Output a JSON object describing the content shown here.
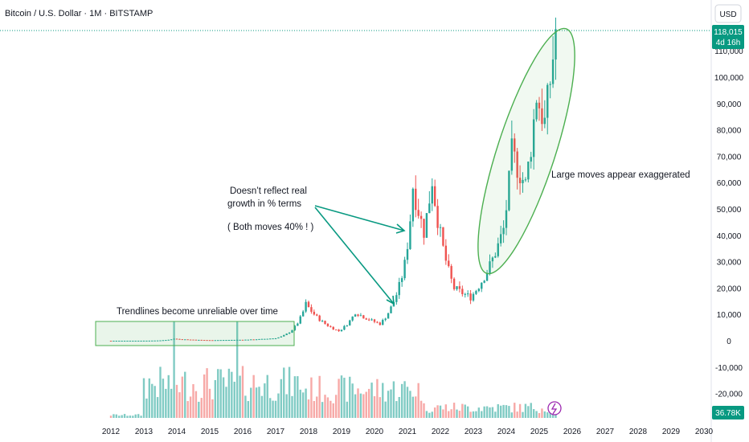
{
  "header": {
    "title": "Bitcoin / U.S. Dollar · 1M · BITSTAMP"
  },
  "currency_button": {
    "label": "USD"
  },
  "price_badge": {
    "price": "118,015",
    "countdown": "4d 16h"
  },
  "volume_badge": {
    "label": "36.78K"
  },
  "colors": {
    "up": "#26a69a",
    "down": "#ef5350",
    "up_volume": "#80cbc4",
    "down_volume": "#f7a9a7",
    "annotation": "#4caf50",
    "badge": "#089981"
  },
  "annotations": {
    "trendline_box": "Trendlines become unreliable over time",
    "growth_line1": "Doesn’t reflect real",
    "growth_line2": "growth in % terms",
    "growth_line3": "( Both moves 40% ! )",
    "exaggerated": "Large moves appear exaggerated"
  },
  "chart_data": {
    "type": "candlestick",
    "title": "Bitcoin / U.S. Dollar · 1M · BITSTAMP",
    "y_ticks": [
      110000,
      100000,
      90000,
      80000,
      70000,
      60000,
      50000,
      40000,
      30000,
      20000,
      10000,
      0,
      -10000,
      -20000
    ],
    "y_tick_labels": [
      "110,000",
      "100,000",
      "90,000",
      "80,000",
      "70,000",
      "60,000",
      "50,000",
      "40,000",
      "30,000",
      "20,000",
      "10,000",
      "0",
      "-10,000",
      "-20,000"
    ],
    "x_ticks": [
      "2012",
      "2013",
      "2014",
      "2015",
      "2016",
      "2017",
      "2018",
      "2019",
      "2020",
      "2021",
      "2022",
      "2023",
      "2024",
      "2025",
      "2026",
      "2027",
      "2028",
      "2029",
      "2030"
    ],
    "last_price": 118015,
    "series": [
      {
        "date": "2012-01",
        "close": 6
      },
      {
        "date": "2013-01",
        "close": 20
      },
      {
        "date": "2013-12",
        "close": 750
      },
      {
        "date": "2015-01",
        "close": 220
      },
      {
        "date": "2016-01",
        "close": 370
      },
      {
        "date": "2017-01",
        "close": 970
      },
      {
        "date": "2017-12",
        "close": 14000
      },
      {
        "date": "2018-12",
        "close": 3700
      },
      {
        "date": "2019-06",
        "close": 10800
      },
      {
        "date": "2020-03",
        "close": 6400
      },
      {
        "date": "2020-12",
        "close": 29000
      },
      {
        "date": "2021-03",
        "close": 58800
      },
      {
        "date": "2021-07",
        "close": 41500
      },
      {
        "date": "2021-10",
        "close": 61300
      },
      {
        "date": "2022-06",
        "close": 19900
      },
      {
        "date": "2022-12",
        "close": 16500
      },
      {
        "date": "2023-12",
        "close": 42300
      },
      {
        "date": "2024-03",
        "close": 71300
      },
      {
        "date": "2024-08",
        "close": 59000
      },
      {
        "date": "2024-12",
        "close": 93400
      },
      {
        "date": "2025-03",
        "close": 82500
      },
      {
        "date": "2025-07",
        "close": 118015
      }
    ]
  }
}
